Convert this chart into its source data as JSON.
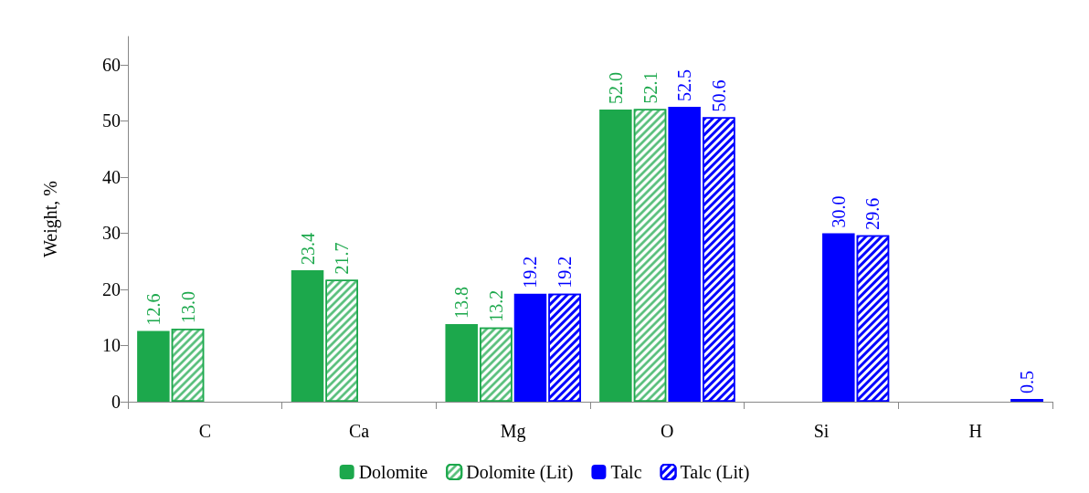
{
  "chart_data": {
    "type": "bar",
    "ylabel": "Weight, %",
    "categories": [
      "C",
      "Ca",
      "Mg",
      "O",
      "Si",
      "H"
    ],
    "ylim": [
      0,
      65
    ],
    "yticks": [
      0,
      10,
      20,
      30,
      40,
      50,
      60
    ],
    "grid": false,
    "legend": "bottom",
    "series": [
      {
        "name": "Dolomite",
        "color": "#1ca84c",
        "values": [
          12.6,
          23.4,
          13.8,
          52.0,
          null,
          null
        ],
        "value_labels": [
          "12.6",
          "23.4",
          "13.8",
          "52.0",
          null,
          null
        ]
      },
      {
        "name": "Dolomite (Lit)",
        "color": "#1ca84c",
        "values": [
          13.0,
          21.7,
          13.2,
          52.1,
          null,
          null
        ],
        "value_labels": [
          "13.0",
          "21.7",
          "13.2",
          "52.1",
          null,
          null
        ]
      },
      {
        "name": "Talc",
        "color": "#0000ff",
        "values": [
          null,
          null,
          19.2,
          52.5,
          30.0,
          null
        ],
        "value_labels": [
          null,
          null,
          "19.2",
          "52.5",
          "30.0",
          null
        ]
      },
      {
        "name": "Talc (Lit)",
        "color": "#0000ff",
        "values": [
          null,
          null,
          19.2,
          50.6,
          29.6,
          0.5
        ],
        "value_labels": [
          null,
          null,
          "19.2",
          "50.6",
          "29.6",
          "0.5"
        ]
      }
    ]
  }
}
